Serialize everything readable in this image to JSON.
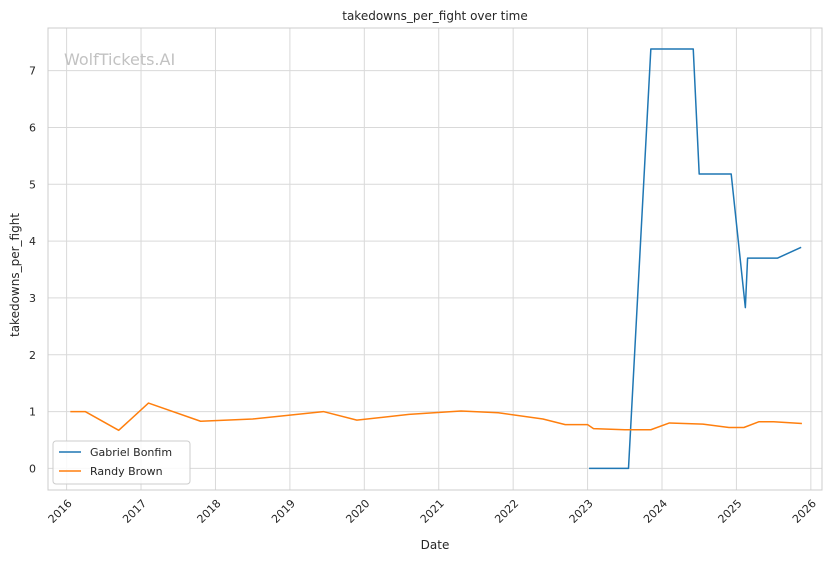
{
  "chart_data": {
    "type": "line",
    "title": "takedowns_per_fight over time",
    "xlabel": "Date",
    "ylabel": "takedowns_per_fight",
    "watermark": "WolfTickets.AI",
    "xlim": [
      2015.75,
      2026.15
    ],
    "ylim": [
      -0.38,
      7.75
    ],
    "x_ticks": [
      2016,
      2017,
      2018,
      2019,
      2020,
      2021,
      2022,
      2023,
      2024,
      2025,
      2026
    ],
    "x_tick_labels": [
      "2016",
      "2017",
      "2018",
      "2019",
      "2020",
      "2021",
      "2022",
      "2023",
      "2024",
      "2025",
      "2026"
    ],
    "y_ticks": [
      0,
      1,
      2,
      3,
      4,
      5,
      6,
      7
    ],
    "y_tick_labels": [
      "0",
      "1",
      "2",
      "3",
      "4",
      "5",
      "6",
      "7"
    ],
    "grid": true,
    "legend_position": "lower-left",
    "series": [
      {
        "name": "Gabriel Bonfim",
        "color": "#1f77b4",
        "points": [
          [
            2023.02,
            0.0
          ],
          [
            2023.55,
            0.0
          ],
          [
            2023.85,
            7.38
          ],
          [
            2024.42,
            7.38
          ],
          [
            2024.5,
            5.18
          ],
          [
            2024.93,
            5.18
          ],
          [
            2025.12,
            2.83
          ],
          [
            2025.15,
            3.7
          ],
          [
            2025.55,
            3.7
          ],
          [
            2025.87,
            3.89
          ]
        ]
      },
      {
        "name": "Randy Brown",
        "color": "#ff7f0e",
        "points": [
          [
            2016.05,
            1.0
          ],
          [
            2016.25,
            1.0
          ],
          [
            2016.7,
            0.67
          ],
          [
            2017.1,
            1.15
          ],
          [
            2017.8,
            0.83
          ],
          [
            2018.5,
            0.87
          ],
          [
            2019.45,
            1.0
          ],
          [
            2019.9,
            0.85
          ],
          [
            2020.6,
            0.95
          ],
          [
            2021.3,
            1.01
          ],
          [
            2021.8,
            0.98
          ],
          [
            2022.4,
            0.87
          ],
          [
            2022.7,
            0.77
          ],
          [
            2023.0,
            0.77
          ],
          [
            2023.08,
            0.7
          ],
          [
            2023.5,
            0.68
          ],
          [
            2023.85,
            0.68
          ],
          [
            2024.1,
            0.8
          ],
          [
            2024.55,
            0.78
          ],
          [
            2024.9,
            0.72
          ],
          [
            2025.1,
            0.72
          ],
          [
            2025.3,
            0.82
          ],
          [
            2025.5,
            0.82
          ],
          [
            2025.88,
            0.79
          ]
        ]
      }
    ]
  }
}
